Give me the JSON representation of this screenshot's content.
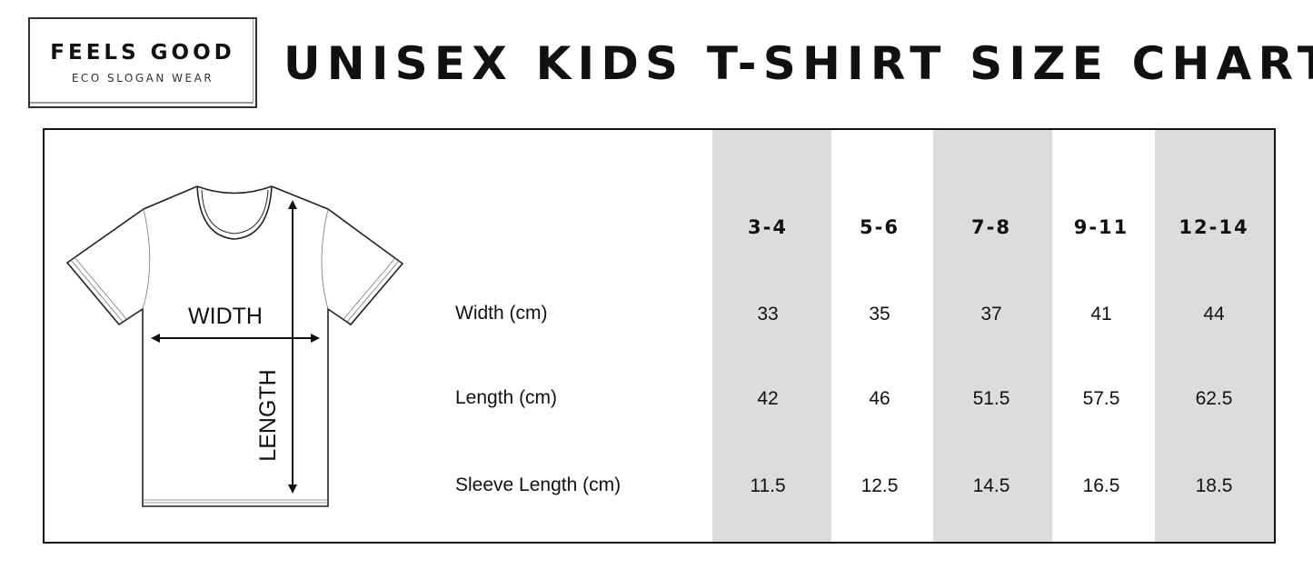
{
  "logo": {
    "name": "FEELS GOOD",
    "tagline": "ECO SLOGAN WEAR"
  },
  "title": "UNISEX KIDS T-SHIRT SIZE CHART",
  "diagram": {
    "width_label": "WIDTH",
    "length_label": "LENGTH"
  },
  "table": {
    "sizes": [
      "3-4",
      "5-6",
      "7-8",
      "9-11",
      "12-14"
    ],
    "rows": [
      {
        "label": "Width (cm)",
        "values": [
          "33",
          "35",
          "37",
          "41",
          "44"
        ]
      },
      {
        "label": "Length (cm)",
        "values": [
          "42",
          "46",
          "51.5",
          "57.5",
          "62.5"
        ]
      },
      {
        "label": "Sleeve Length (cm)",
        "values": [
          "11.5",
          "12.5",
          "14.5",
          "16.5",
          "18.5"
        ]
      }
    ],
    "shaded_column_color": "#dcdcdd"
  }
}
